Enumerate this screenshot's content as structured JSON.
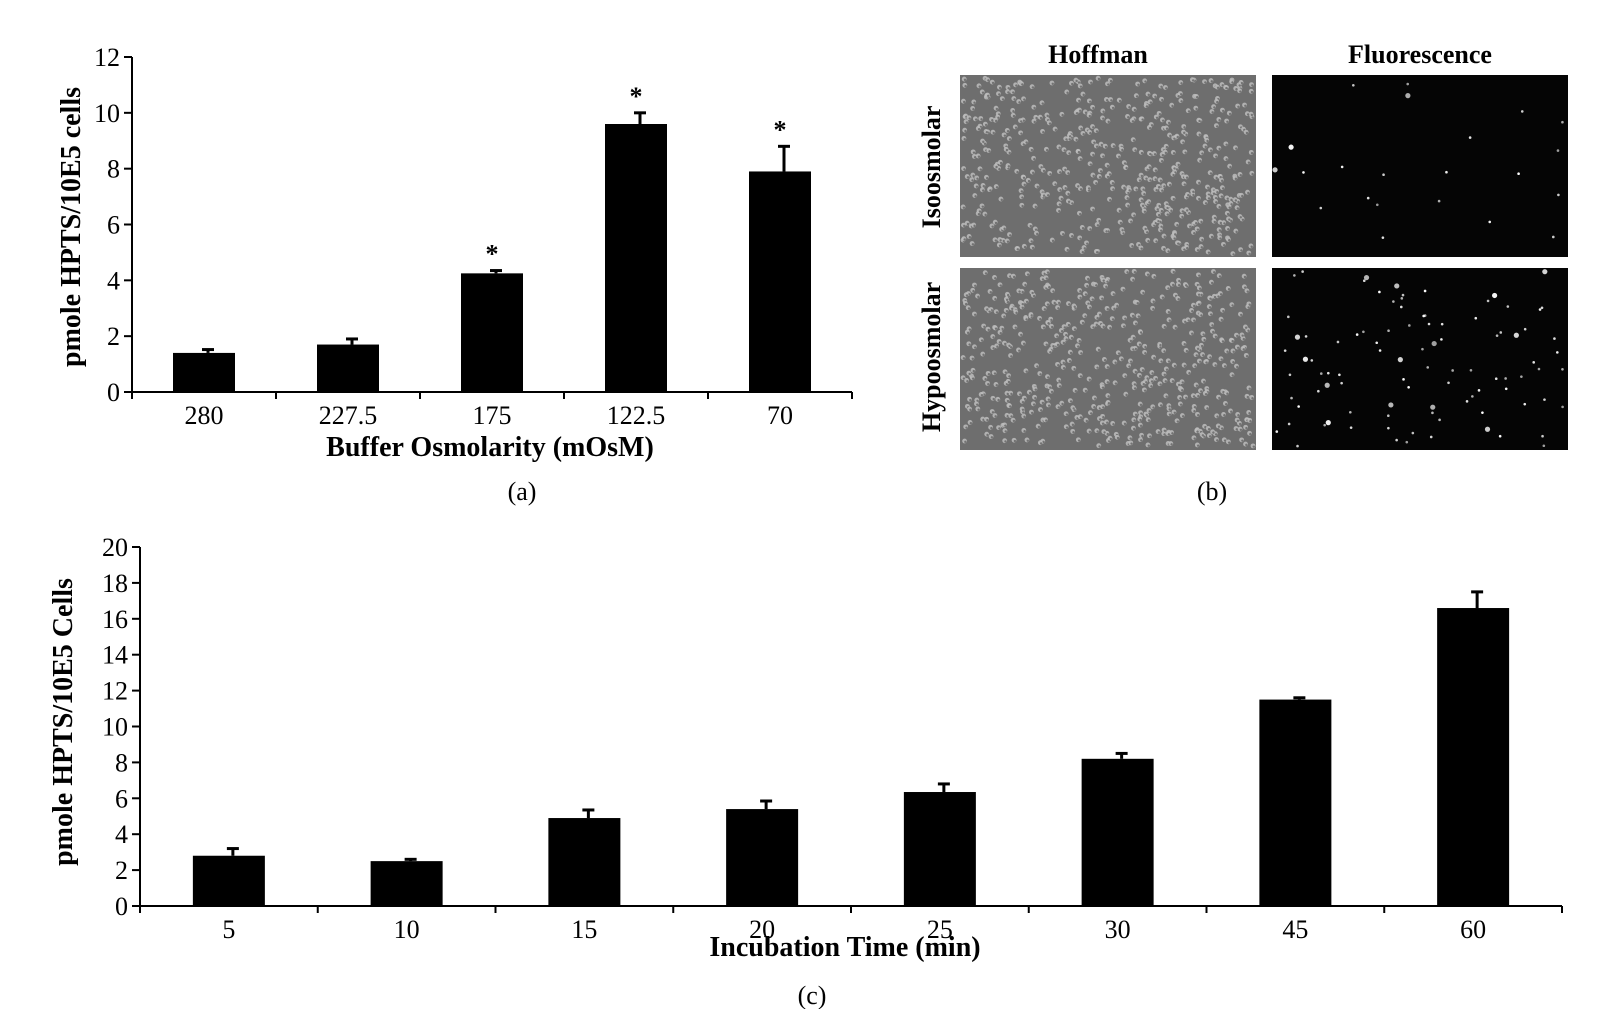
{
  "chart_data": [
    {
      "type": "bar",
      "panel": "(a)",
      "categories": [
        "280",
        "227.5",
        "175",
        "122.5",
        "70"
      ],
      "values": [
        1.4,
        1.7,
        4.25,
        9.6,
        7.9
      ],
      "errors": [
        0.12,
        0.2,
        0.1,
        0.4,
        0.9
      ],
      "significant": [
        false,
        false,
        true,
        true,
        true
      ],
      "significance_marker": "*",
      "xlabel": "Buffer Osmolarity (mOsM)",
      "ylabel": "pmole HPTS/10E5 cells",
      "ylim": [
        0,
        12
      ],
      "yticks": [
        "0",
        "2",
        "4",
        "6",
        "8",
        "10",
        "12"
      ]
    },
    {
      "type": "bar",
      "panel": "(c)",
      "categories": [
        "5",
        "10",
        "15",
        "20",
        "25",
        "30",
        "45",
        "60"
      ],
      "values": [
        2.8,
        2.5,
        4.9,
        5.4,
        6.35,
        8.2,
        11.5,
        16.6
      ],
      "errors": [
        0.4,
        0.1,
        0.45,
        0.45,
        0.45,
        0.3,
        0.1,
        0.9
      ],
      "xlabel": "Incubation Time (min)",
      "ylabel": "pmole HPTS/10E5 Cells",
      "ylim": [
        0,
        20
      ],
      "yticks": [
        "0",
        "2",
        "4",
        "6",
        "8",
        "10",
        "12",
        "14",
        "16",
        "18",
        "20"
      ]
    }
  ],
  "micrographs": {
    "panel": "(b)",
    "columns": [
      "Hoffman",
      "Fluorescence"
    ],
    "rows": [
      "Isoosmolar",
      "Hypoosmolar"
    ],
    "hoffman_bg": "#6e6e6e",
    "fluorescence_bg": "#050505"
  },
  "colors": {
    "bar": "#000000",
    "axis": "#000000"
  }
}
